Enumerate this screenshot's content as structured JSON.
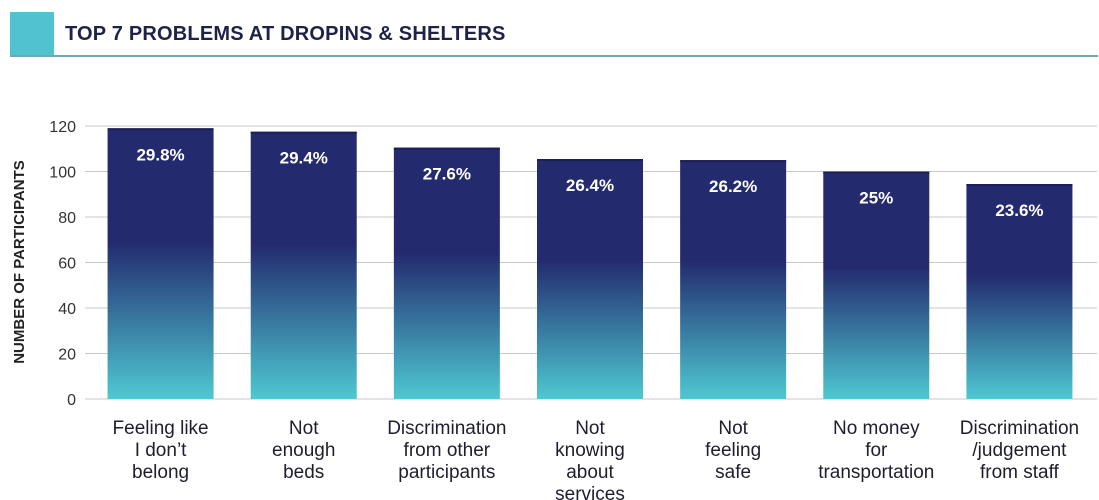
{
  "header": {
    "title": "TOP 7 PROBLEMS AT DROPINS & SHELTERS"
  },
  "colors": {
    "accent": "#4fc3cf",
    "bar_top": "#232a6e",
    "bar_bottom": "#4ec8d2",
    "grid": "#c8c8c8"
  },
  "chart_data": {
    "type": "bar",
    "title": "TOP 7 PROBLEMS AT DROPINS & SHELTERS",
    "xlabel": "",
    "ylabel": "NUMBER OF PARTICIPANTS",
    "ylim": [
      0,
      120
    ],
    "yticks": [
      0,
      20,
      40,
      60,
      80,
      100,
      120
    ],
    "grid": true,
    "categories": [
      [
        "Feeling like",
        "I don’t",
        "belong"
      ],
      [
        "Not",
        "enough",
        "beds"
      ],
      [
        "Discrimination",
        "from other",
        "participants"
      ],
      [
        "Not",
        "knowing",
        "about",
        "services"
      ],
      [
        "Not",
        "feeling",
        "safe"
      ],
      [
        "No money",
        "for",
        "transportation"
      ],
      [
        "Discrimination",
        "/judgement",
        "from staff"
      ]
    ],
    "values": [
      119,
      117.5,
      110.5,
      105.5,
      105,
      100,
      94.5
    ],
    "data_labels": [
      "29.8%",
      "29.4%",
      "27.6%",
      "26.4%",
      "26.2%",
      "25%",
      "23.6%"
    ]
  }
}
